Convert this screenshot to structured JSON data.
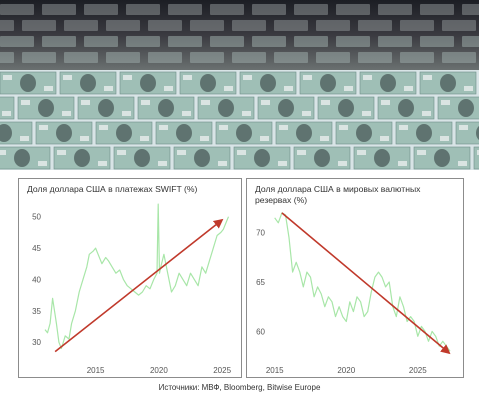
{
  "banner": {
    "image": "dollar-banknotes-printing-press-photo",
    "colors": {
      "notes_light": "#d8e4e6",
      "notes_green": "#9fbfb6",
      "notes_dark": "#4a5a58",
      "roller_dark": "#3a3a40"
    }
  },
  "source": "Источники: МВФ, Bloomberg, Bitwise Europe",
  "chart_data": [
    {
      "type": "line",
      "title": "Доля доллара США в платежах SWIFT (%)",
      "xlabel": "",
      "ylabel": "",
      "xlim": [
        2011,
        2025.7
      ],
      "ylim": [
        27,
        52.5
      ],
      "xticks": [
        2015,
        2020,
        2025
      ],
      "yticks": [
        30,
        35,
        40,
        45,
        50
      ],
      "grid": false,
      "line_color": "#a8e6a8",
      "trend_color": "#c0392b",
      "series": [
        {
          "x": [
            2011.0,
            2011.2,
            2011.4,
            2011.6,
            2011.9,
            2012.1,
            2012.3,
            2012.6,
            2012.9,
            2013.1,
            2013.4,
            2013.7,
            2014.0,
            2014.3,
            2014.5,
            2014.8,
            2015.0,
            2015.2,
            2015.5,
            2015.8,
            2016.0,
            2016.3,
            2016.6,
            2016.9,
            2017.2,
            2017.5,
            2017.8,
            2018.1,
            2018.4,
            2018.7,
            2019.0,
            2019.3,
            2019.6,
            2019.85,
            2019.95,
            2020.05,
            2020.15,
            2020.4,
            2020.7,
            2021.0,
            2021.3,
            2021.6,
            2021.9,
            2022.2,
            2022.5,
            2022.8,
            2023.1,
            2023.4,
            2023.7,
            2024.0,
            2024.3,
            2024.6,
            2024.9,
            2025.1,
            2025.3,
            2025.5
          ],
          "y": [
            32,
            31.5,
            33,
            37,
            33,
            30,
            29,
            31,
            30.5,
            33,
            35,
            38,
            40,
            42,
            44,
            44.5,
            45,
            44,
            42.5,
            43.5,
            43,
            42,
            41,
            41.5,
            40,
            39,
            38.5,
            38,
            37.5,
            38,
            39,
            38.5,
            40,
            41,
            52,
            41,
            42,
            44,
            41,
            38,
            39,
            41,
            40,
            39,
            41,
            40,
            39,
            42,
            41,
            43,
            45,
            47,
            47.5,
            48,
            49,
            50
          ]
        }
      ],
      "trendline": {
        "x": [
          2011.8,
          2025.0
        ],
        "y": [
          28.5,
          49.5
        ]
      }
    },
    {
      "type": "line",
      "title": "Доля доллара США в мировых валютных резервах (%)",
      "xlabel": "",
      "ylabel": "",
      "xlim": [
        2014.6,
        2027.6
      ],
      "ylim": [
        57,
        73
      ],
      "xticks": [
        2015,
        2020,
        2025
      ],
      "yticks": [
        60,
        65,
        70
      ],
      "grid": false,
      "line_color": "#a8e6a8",
      "trend_color": "#c0392b",
      "series": [
        {
          "x": [
            2015.0,
            2015.25,
            2015.5,
            2015.75,
            2016.0,
            2016.25,
            2016.5,
            2016.75,
            2017.0,
            2017.25,
            2017.5,
            2017.75,
            2018.0,
            2018.25,
            2018.5,
            2018.75,
            2019.0,
            2019.25,
            2019.5,
            2019.75,
            2020.0,
            2020.25,
            2020.5,
            2020.75,
            2021.0,
            2021.25,
            2021.5,
            2021.75,
            2022.0,
            2022.25,
            2022.5,
            2022.75,
            2023.0,
            2023.25,
            2023.5,
            2023.75,
            2024.0,
            2024.25,
            2024.5,
            2024.75,
            2025.0,
            2025.25,
            2025.5,
            2025.75,
            2026.0,
            2026.25,
            2026.5,
            2026.75,
            2027.0,
            2027.25
          ],
          "y": [
            71.5,
            71,
            72,
            71.8,
            69.5,
            66,
            67,
            66,
            64.5,
            66,
            65.5,
            63.5,
            64.5,
            63.8,
            62.5,
            63.5,
            63,
            61.5,
            62.5,
            61.5,
            61,
            63,
            62,
            63.5,
            63,
            61.5,
            62,
            64,
            65.5,
            66,
            65.5,
            64.5,
            65,
            62.5,
            61.5,
            63.5,
            62.5,
            61,
            61.5,
            61,
            59.5,
            60.5,
            60,
            59,
            60,
            59.5,
            58.5,
            59,
            58.5,
            58
          ]
        }
      ],
      "trendline": {
        "x": [
          2015.5,
          2027.2
        ],
        "y": [
          72.0,
          57.8
        ]
      }
    }
  ]
}
